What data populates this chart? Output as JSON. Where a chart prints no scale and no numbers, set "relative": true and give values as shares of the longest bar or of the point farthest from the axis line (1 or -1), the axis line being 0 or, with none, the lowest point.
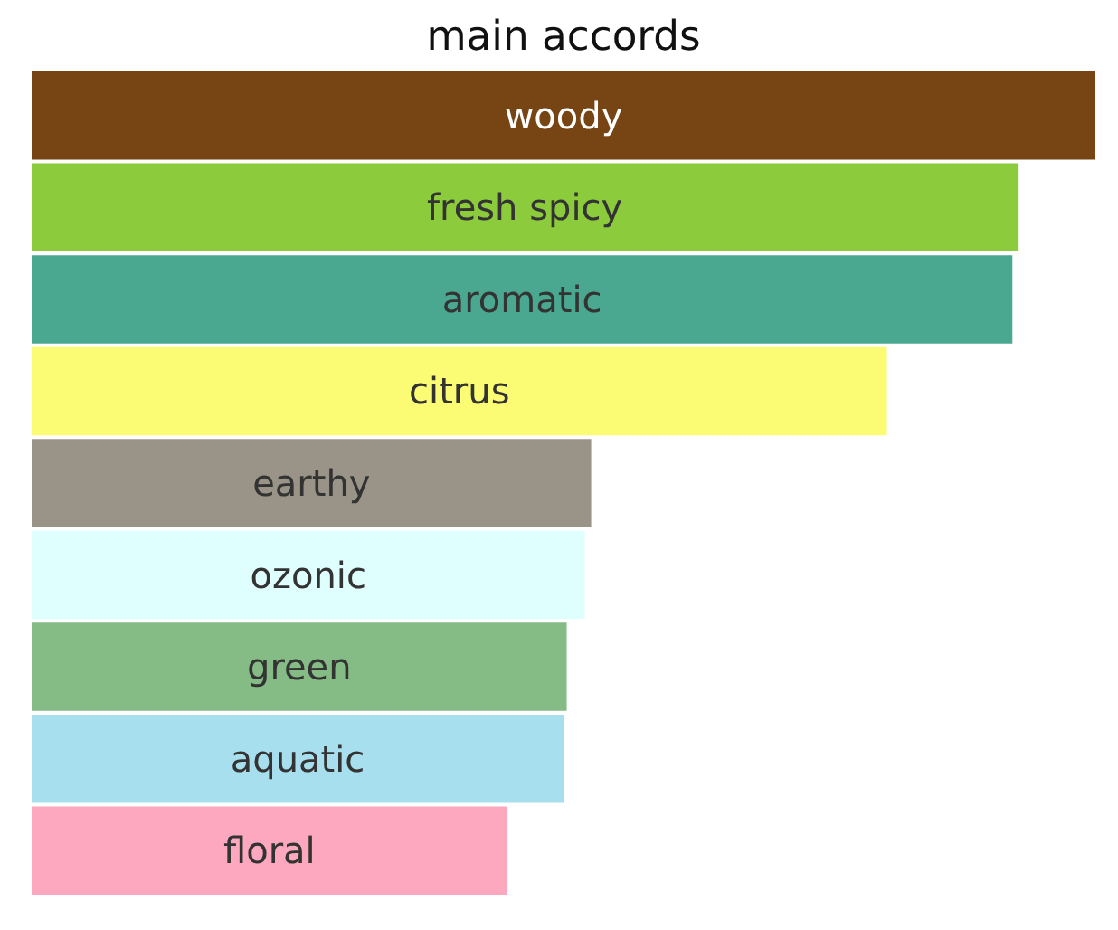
{
  "chart_data": {
    "type": "bar",
    "orientation": "horizontal",
    "relative": true,
    "title": "main accords",
    "categories": [
      "woody",
      "fresh spicy",
      "aromatic",
      "citrus",
      "earthy",
      "ozonic",
      "green",
      "aquatic",
      "floral"
    ],
    "values": [
      1,
      0.927,
      0.922,
      0.804,
      0.526,
      0.52,
      0.503,
      0.5,
      0.447
    ],
    "colors": [
      "#774414",
      "#8ccc3c",
      "#4aa891",
      "#fcfc74",
      "#9a9488",
      "#dffefe",
      "#85bb85",
      "#a8dfee",
      "#fea8c0"
    ]
  }
}
